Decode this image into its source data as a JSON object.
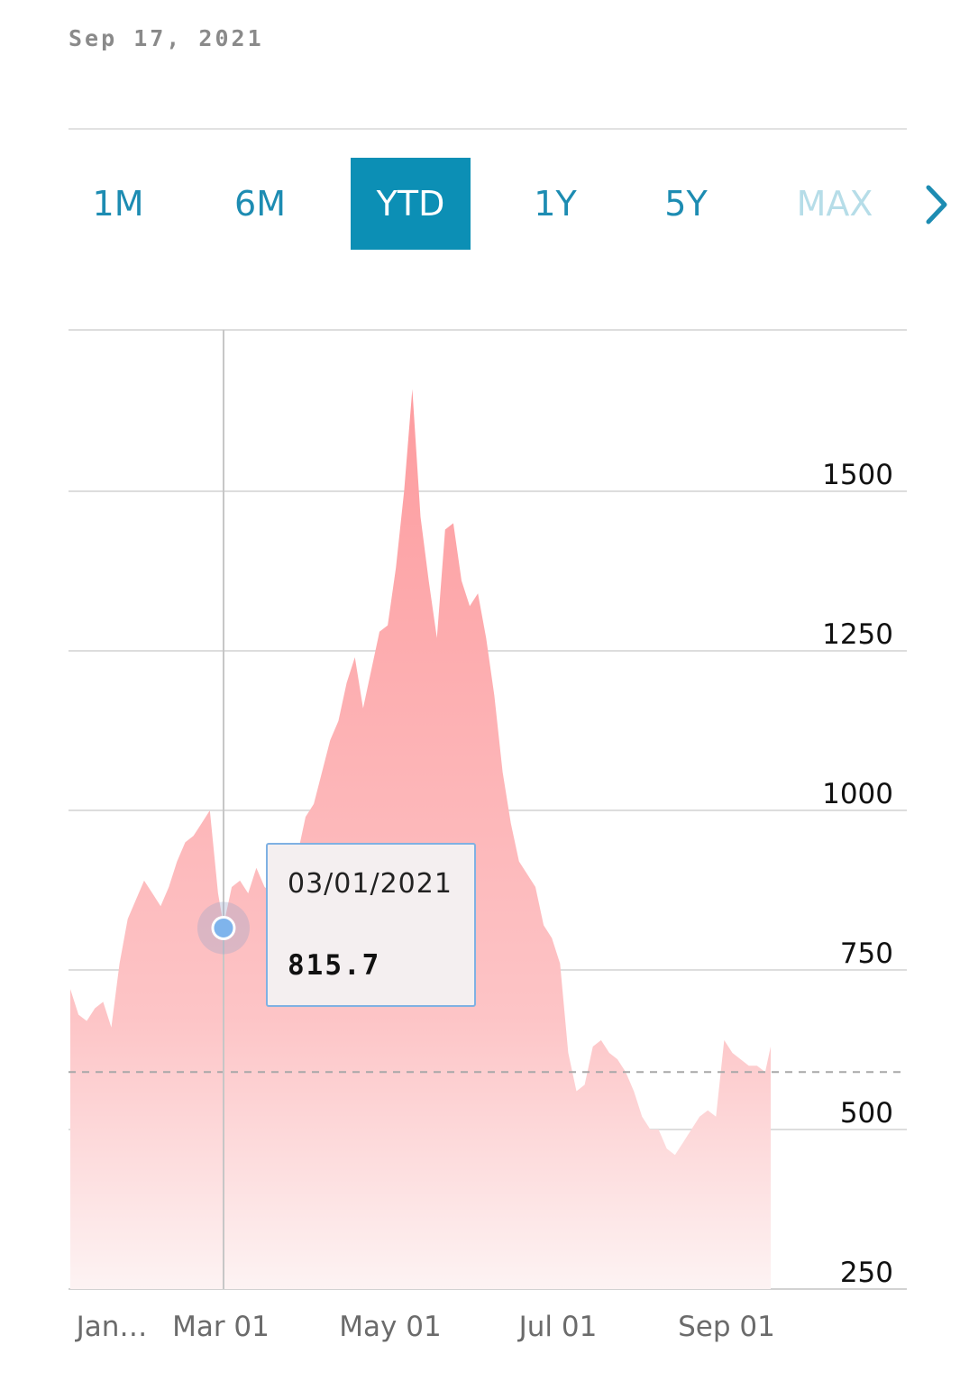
{
  "header": {
    "date": "Sep 17, 2021"
  },
  "range_tabs": [
    {
      "label": "1M",
      "state": "normal"
    },
    {
      "label": "6M",
      "state": "normal"
    },
    {
      "label": "YTD",
      "state": "active"
    },
    {
      "label": "1Y",
      "state": "normal"
    },
    {
      "label": "5Y",
      "state": "normal"
    },
    {
      "label": "MAX",
      "state": "disabled"
    }
  ],
  "next_icon": "chevron-right-icon",
  "colors": {
    "accent": "#0c8fb5",
    "area_top": "#fd9b9e",
    "area_bottom": "#fdf3f3",
    "tooltip_border": "#7fb1e3",
    "marker": "#7fb4ec"
  },
  "tooltip": {
    "date": "03/01/2021",
    "value": "815.7"
  },
  "chart_data": {
    "type": "area",
    "title": "",
    "xlabel": "",
    "ylabel": "",
    "y_axis_side": "right",
    "ylim": [
      250,
      1750
    ],
    "y_ticks": [
      250,
      500,
      750,
      1000,
      1250,
      1500
    ],
    "y_tick_labels": [
      "250",
      "500",
      "750",
      "1000",
      "1250",
      "1500"
    ],
    "x_ticks": [
      "2021-01-04",
      "2021-03-01",
      "2021-05-01",
      "2021-07-01",
      "2021-09-01"
    ],
    "x_tick_labels": [
      "Jan…",
      "Mar 01",
      "May 01",
      "Jul 01",
      "Sep 01"
    ],
    "reference_line": {
      "value": 590,
      "style": "dashed"
    },
    "grid": true,
    "highlight": {
      "x": "2021-03-01",
      "y": 815.7
    },
    "series": [
      {
        "x": [
          "2021-01-04",
          "2021-01-07",
          "2021-01-10",
          "2021-01-13",
          "2021-01-16",
          "2021-01-19",
          "2021-01-22",
          "2021-01-25",
          "2021-01-28",
          "2021-01-31",
          "2021-02-03",
          "2021-02-06",
          "2021-02-09",
          "2021-02-12",
          "2021-02-15",
          "2021-02-18",
          "2021-02-21",
          "2021-02-24",
          "2021-02-27",
          "2021-03-01",
          "2021-03-04",
          "2021-03-07",
          "2021-03-10",
          "2021-03-13",
          "2021-03-16",
          "2021-03-19",
          "2021-03-22",
          "2021-03-25",
          "2021-03-28",
          "2021-03-31",
          "2021-04-03",
          "2021-04-06",
          "2021-04-09",
          "2021-04-12",
          "2021-04-15",
          "2021-04-18",
          "2021-04-21",
          "2021-04-24",
          "2021-04-27",
          "2021-04-30",
          "2021-05-03",
          "2021-05-06",
          "2021-05-09",
          "2021-05-12",
          "2021-05-15",
          "2021-05-18",
          "2021-05-21",
          "2021-05-24",
          "2021-05-27",
          "2021-05-30",
          "2021-06-02",
          "2021-06-05",
          "2021-06-08",
          "2021-06-11",
          "2021-06-14",
          "2021-06-17",
          "2021-06-20",
          "2021-06-23",
          "2021-06-26",
          "2021-06-29",
          "2021-07-02",
          "2021-07-05",
          "2021-07-08",
          "2021-07-11",
          "2021-07-14",
          "2021-07-17",
          "2021-07-20",
          "2021-07-23",
          "2021-07-26",
          "2021-07-29",
          "2021-08-01",
          "2021-08-04",
          "2021-08-07",
          "2021-08-10",
          "2021-08-13",
          "2021-08-16",
          "2021-08-19",
          "2021-08-22",
          "2021-08-25",
          "2021-08-28",
          "2021-08-31",
          "2021-09-03",
          "2021-09-06",
          "2021-09-09",
          "2021-09-12",
          "2021-09-15",
          "2021-09-17"
        ],
        "y": [
          720,
          680,
          670,
          690,
          700,
          660,
          760,
          830,
          860,
          890,
          870,
          850,
          880,
          920,
          950,
          960,
          980,
          1000,
          870,
          820,
          880,
          890,
          870,
          910,
          880,
          870,
          900,
          900,
          930,
          990,
          1010,
          1060,
          1110,
          1140,
          1200,
          1240,
          1160,
          1220,
          1280,
          1290,
          1380,
          1500,
          1660,
          1460,
          1360,
          1270,
          1440,
          1450,
          1360,
          1320,
          1340,
          1270,
          1180,
          1060,
          980,
          920,
          900,
          880,
          820,
          800,
          760,
          620,
          560,
          570,
          630,
          640,
          620,
          610,
          590,
          560,
          520,
          500,
          500,
          470,
          460,
          480,
          500,
          520,
          530,
          520,
          640,
          620,
          610,
          600,
          600,
          590,
          630
        ]
      }
    ]
  }
}
